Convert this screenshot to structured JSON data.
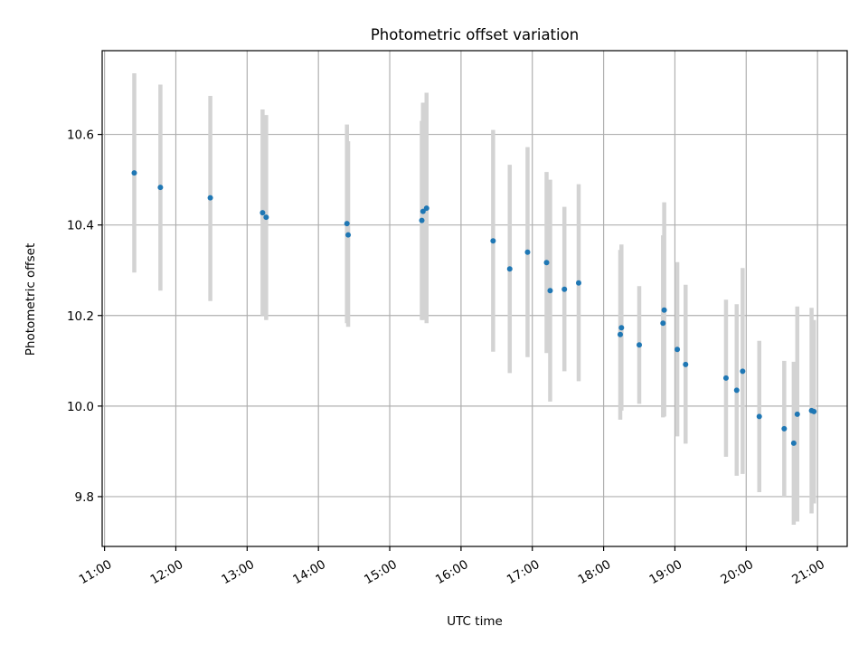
{
  "chart_data": {
    "type": "scatter",
    "title": "Photometric offset variation",
    "xlabel": "UTC time",
    "ylabel": "Photometric offset",
    "xlim": [
      "10:58",
      "21:25"
    ],
    "ylim": [
      9.69,
      10.785
    ],
    "xticks": [
      "11:00",
      "12:00",
      "13:00",
      "14:00",
      "15:00",
      "16:00",
      "17:00",
      "18:00",
      "19:00",
      "20:00",
      "21:00"
    ],
    "yticks": [
      "9.8",
      "10.0",
      "10.2",
      "10.4",
      "10.6"
    ],
    "grid": true,
    "series": [
      {
        "point_color": "#1f77b4",
        "errorbar_color": "#d3d3d3",
        "points": [
          {
            "x": "11:25",
            "y": 10.515,
            "lo": 10.295,
            "hi": 10.735
          },
          {
            "x": "11:47",
            "y": 10.483,
            "lo": 10.255,
            "hi": 10.71
          },
          {
            "x": "12:29",
            "y": 10.46,
            "lo": 10.232,
            "hi": 10.685
          },
          {
            "x": "13:13",
            "y": 10.427,
            "lo": 10.2,
            "hi": 10.655
          },
          {
            "x": "13:16",
            "y": 10.417,
            "lo": 10.19,
            "hi": 10.643
          },
          {
            "x": "14:24",
            "y": 10.403,
            "lo": 10.183,
            "hi": 10.622
          },
          {
            "x": "14:25",
            "y": 10.378,
            "lo": 10.175,
            "hi": 10.585
          },
          {
            "x": "15:27",
            "y": 10.41,
            "lo": 10.19,
            "hi": 10.63
          },
          {
            "x": "15:28",
            "y": 10.43,
            "lo": 10.19,
            "hi": 10.67
          },
          {
            "x": "15:31",
            "y": 10.437,
            "lo": 10.183,
            "hi": 10.692
          },
          {
            "x": "16:27",
            "y": 10.365,
            "lo": 10.12,
            "hi": 10.61
          },
          {
            "x": "16:41",
            "y": 10.303,
            "lo": 10.073,
            "hi": 10.533
          },
          {
            "x": "16:56",
            "y": 10.34,
            "lo": 10.108,
            "hi": 10.572
          },
          {
            "x": "17:12",
            "y": 10.317,
            "lo": 10.117,
            "hi": 10.517
          },
          {
            "x": "17:15",
            "y": 10.255,
            "lo": 10.01,
            "hi": 10.5
          },
          {
            "x": "17:27",
            "y": 10.258,
            "lo": 10.077,
            "hi": 10.44
          },
          {
            "x": "17:39",
            "y": 10.272,
            "lo": 10.055,
            "hi": 10.49
          },
          {
            "x": "18:14",
            "y": 10.158,
            "lo": 9.97,
            "hi": 10.345
          },
          {
            "x": "18:15",
            "y": 10.173,
            "lo": 9.99,
            "hi": 10.357
          },
          {
            "x": "18:30",
            "y": 10.135,
            "lo": 10.005,
            "hi": 10.265
          },
          {
            "x": "18:50",
            "y": 10.183,
            "lo": 9.975,
            "hi": 10.377
          },
          {
            "x": "18:51",
            "y": 10.212,
            "lo": 9.977,
            "hi": 10.45
          },
          {
            "x": "19:02",
            "y": 10.125,
            "lo": 9.933,
            "hi": 10.318
          },
          {
            "x": "19:09",
            "y": 10.092,
            "lo": 9.917,
            "hi": 10.268
          },
          {
            "x": "19:43",
            "y": 10.062,
            "lo": 9.888,
            "hi": 10.235
          },
          {
            "x": "19:52",
            "y": 10.035,
            "lo": 9.846,
            "hi": 10.225
          },
          {
            "x": "19:57",
            "y": 10.077,
            "lo": 9.85,
            "hi": 10.305
          },
          {
            "x": "20:11",
            "y": 9.977,
            "lo": 9.81,
            "hi": 10.144
          },
          {
            "x": "20:32",
            "y": 9.95,
            "lo": 9.8,
            "hi": 10.1
          },
          {
            "x": "20:40",
            "y": 9.918,
            "lo": 9.738,
            "hi": 10.098
          },
          {
            "x": "20:43",
            "y": 9.982,
            "lo": 9.745,
            "hi": 10.22
          },
          {
            "x": "20:55",
            "y": 9.99,
            "lo": 9.763,
            "hi": 10.217
          },
          {
            "x": "20:57",
            "y": 9.988,
            "lo": 9.785,
            "hi": 10.19
          }
        ]
      }
    ]
  }
}
